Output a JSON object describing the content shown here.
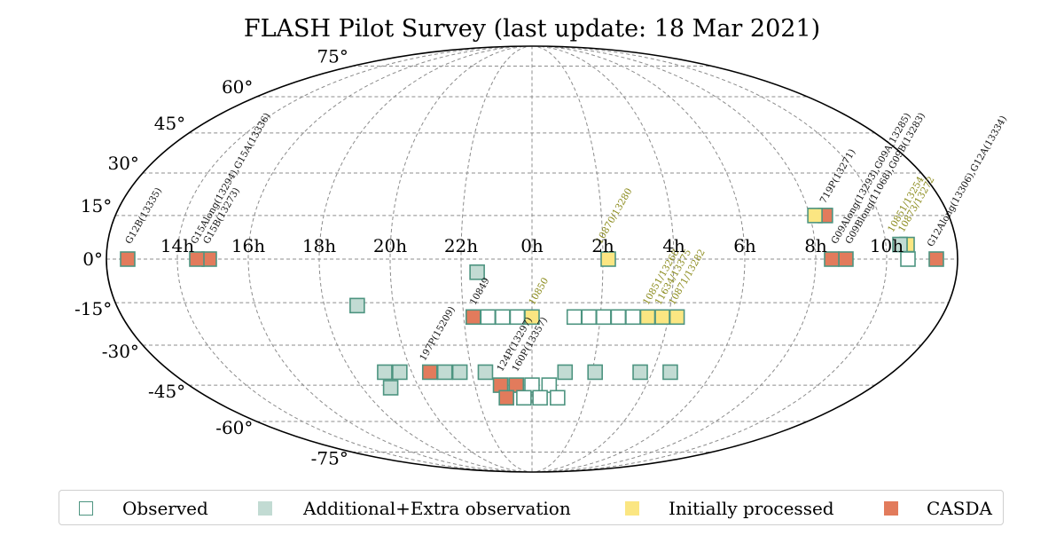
{
  "chart_data": {
    "type": "scatter",
    "projection": "mollweide",
    "title": "FLASH Pilot Survey (last update: 18 Mar 2021)",
    "ra_tick_labels": [
      "10h",
      "8h",
      "6h",
      "4h",
      "2h",
      "0h",
      "22h",
      "20h",
      "18h",
      "16h",
      "14h"
    ],
    "dec_tick_labels": [
      "75°",
      "60°",
      "45°",
      "30°",
      "15°",
      "0°",
      "-15°",
      "-30°",
      "-45°",
      "-60°",
      "-75°"
    ],
    "grid": true,
    "legend": {
      "placement": "bottom",
      "entries": [
        {
          "name": "Observed",
          "key": "observed"
        },
        {
          "name": "Additional+Extra observation",
          "key": "additional"
        },
        {
          "name": "Initially processed",
          "key": "processed"
        },
        {
          "name": "CASDA",
          "key": "casda"
        }
      ]
    },
    "colors": {
      "observed_edge": "#4d9480",
      "additional_fill": "#c2dbd3",
      "processed_fill": "#fbe682",
      "casda_fill": "#e27b5c",
      "label_dark": "#111111",
      "label_olive": "#8a8a1a"
    },
    "fields": [
      {
        "ra": 11.4,
        "dec": 0,
        "status": "casda"
      },
      {
        "ra": 10.6,
        "dec": 0,
        "status": "observed"
      },
      {
        "ra": 10.6,
        "dec": 5,
        "status": "processed"
      },
      {
        "ra": 10.4,
        "dec": 5,
        "status": "additional"
      },
      {
        "ra": 8.45,
        "dec": 15,
        "status": "casda"
      },
      {
        "ra": 8.15,
        "dec": 15,
        "status": "processed"
      },
      {
        "ra": 8.85,
        "dec": 0,
        "status": "casda"
      },
      {
        "ra": 8.45,
        "dec": 0,
        "status": "casda"
      },
      {
        "ra": 2.15,
        "dec": 0,
        "status": "processed"
      },
      {
        "ra": 22.45,
        "dec": -4.5,
        "status": "additional"
      },
      {
        "ra": 4.25,
        "dec": -20,
        "status": "processed"
      },
      {
        "ra": 3.82,
        "dec": -20,
        "status": "processed"
      },
      {
        "ra": 3.39,
        "dec": -20,
        "status": "processed"
      },
      {
        "ra": 2.96,
        "dec": -20,
        "status": "observed"
      },
      {
        "ra": 2.53,
        "dec": -20,
        "status": "observed"
      },
      {
        "ra": 2.1,
        "dec": -20,
        "status": "observed"
      },
      {
        "ra": 1.67,
        "dec": -20,
        "status": "observed"
      },
      {
        "ra": 1.24,
        "dec": -20,
        "status": "observed"
      },
      {
        "ra": 0.0,
        "dec": -20,
        "status": "processed"
      },
      {
        "ra": 23.57,
        "dec": -20,
        "status": "observed"
      },
      {
        "ra": 23.14,
        "dec": -20,
        "status": "observed"
      },
      {
        "ra": 22.71,
        "dec": -20,
        "status": "observed"
      },
      {
        "ra": 22.28,
        "dec": -20,
        "status": "casda"
      },
      {
        "ra": 18.95,
        "dec": -16,
        "status": "additional"
      },
      {
        "ra": 4.6,
        "dec": -40,
        "status": "additional"
      },
      {
        "ra": 3.6,
        "dec": -40,
        "status": "additional"
      },
      {
        "ra": 2.1,
        "dec": -40,
        "status": "additional"
      },
      {
        "ra": 1.1,
        "dec": -40,
        "status": "additional"
      },
      {
        "ra": 22.45,
        "dec": -40,
        "status": "additional"
      },
      {
        "ra": 21.6,
        "dec": -40,
        "status": "additional"
      },
      {
        "ra": 21.1,
        "dec": -40,
        "status": "additional"
      },
      {
        "ra": 20.6,
        "dec": -40,
        "status": "casda"
      },
      {
        "ra": 19.6,
        "dec": -40,
        "status": "additional"
      },
      {
        "ra": 19.1,
        "dec": -40,
        "status": "additional"
      },
      {
        "ra": 19.0,
        "dec": -46,
        "status": "additional"
      },
      {
        "ra": 0.6,
        "dec": -45,
        "status": "observed"
      },
      {
        "ra": 0.0,
        "dec": -45,
        "status": "observed"
      },
      {
        "ra": 23.45,
        "dec": -45,
        "status": "casda"
      },
      {
        "ra": 22.9,
        "dec": -45,
        "status": "casda"
      },
      {
        "ra": 0.95,
        "dec": -50,
        "status": "observed"
      },
      {
        "ra": 0.3,
        "dec": -50,
        "status": "observed"
      },
      {
        "ra": 23.7,
        "dec": -50,
        "status": "observed"
      },
      {
        "ra": 23.05,
        "dec": -50,
        "status": "casda"
      },
      {
        "ra": 14.9,
        "dec": 0,
        "status": "casda"
      },
      {
        "ra": 14.55,
        "dec": 0,
        "status": "casda"
      },
      {
        "ra": 12.6,
        "dec": 0,
        "status": "casda"
      }
    ],
    "field_labels": [
      {
        "text": "G12Along(13306),G12A(13334)",
        "ra": 11.3,
        "dec": 4,
        "tone": "dark"
      },
      {
        "text": "10873/13272",
        "ra": 10.55,
        "dec": 9,
        "tone": "olive"
      },
      {
        "text": "10851/13254",
        "ra": 10.25,
        "dec": 9,
        "tone": "olive"
      },
      {
        "text": "G09Blong(11068),G09B(13283)",
        "ra": 9.0,
        "dec": 5,
        "tone": "dark"
      },
      {
        "text": "719P(13271)",
        "ra": 8.55,
        "dec": 19,
        "tone": "dark"
      },
      {
        "text": "G09Along(13293),G09A(13285)",
        "ra": 8.6,
        "dec": 5,
        "tone": "dark"
      },
      {
        "text": "10870/13280",
        "ra": 1.95,
        "dec": 5,
        "tone": "olive"
      },
      {
        "text": "10871/13282",
        "ra": 4.1,
        "dec": -16,
        "tone": "olive"
      },
      {
        "text": "11634/13375",
        "ra": 3.7,
        "dec": -16,
        "tone": "olive"
      },
      {
        "text": "10851/13268",
        "ra": 3.35,
        "dec": -16,
        "tone": "olive"
      },
      {
        "text": "10850",
        "ra": 0.05,
        "dec": -16,
        "tone": "olive"
      },
      {
        "text": "10849",
        "ra": 22.35,
        "dec": -16,
        "tone": "dark"
      },
      {
        "text": "160P(13357)",
        "ra": 23.5,
        "dec": -40,
        "tone": "dark"
      },
      {
        "text": "124P(13297)",
        "ra": 23.0,
        "dec": -40,
        "tone": "dark"
      },
      {
        "text": "197P(15209)",
        "ra": 20.55,
        "dec": -36,
        "tone": "dark"
      },
      {
        "text": "G15B(13273)",
        "ra": 14.85,
        "dec": 5,
        "tone": "dark"
      },
      {
        "text": "G15Along(13294),G15A(13336)",
        "ra": 14.5,
        "dec": 5,
        "tone": "dark"
      },
      {
        "text": "G12B(13335)",
        "ra": 12.65,
        "dec": 5,
        "tone": "dark"
      }
    ]
  }
}
